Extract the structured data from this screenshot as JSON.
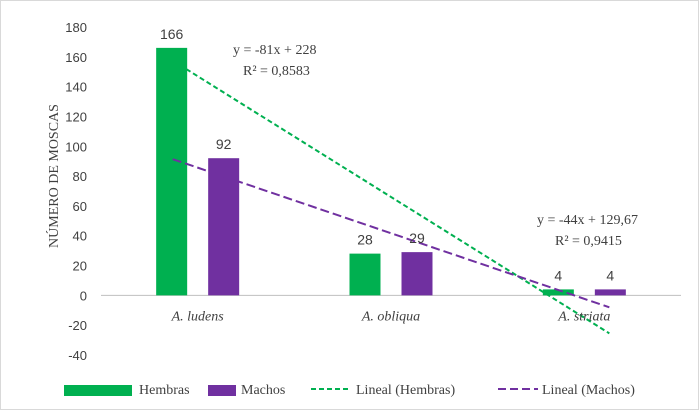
{
  "chart_data": {
    "type": "bar",
    "title": "",
    "xlabel": "",
    "ylabel": "NÚMERO DE MOSCAS",
    "ylim": [
      -40,
      180
    ],
    "yticks": [
      -40,
      -20,
      0,
      20,
      40,
      60,
      80,
      100,
      120,
      140,
      160,
      180
    ],
    "categories": [
      "A. ludens",
      "A. obliqua",
      "A. striata"
    ],
    "series": [
      {
        "name": "Hembras",
        "values": [
          166,
          28,
          4
        ],
        "color": "#00b050"
      },
      {
        "name": "Machos",
        "values": [
          92,
          29,
          4
        ],
        "color": "#7030a0"
      }
    ],
    "trendlines": [
      {
        "name": "Lineal (Hembras)",
        "series": "Hembras",
        "slope": -81,
        "intercept": 228,
        "equation": "y = -81x + 228",
        "r2": "R² = 0,8583",
        "color": "#00b050",
        "style": "dashed"
      },
      {
        "name": "Lineal (Machos)",
        "series": "Machos",
        "slope": -44,
        "intercept": 129.67,
        "equation": "y = -44x + 129,67",
        "r2": "R² = 0,9415",
        "color": "#7030a0",
        "style": "dashed"
      }
    ],
    "grid": false,
    "legend_position": "bottom"
  }
}
